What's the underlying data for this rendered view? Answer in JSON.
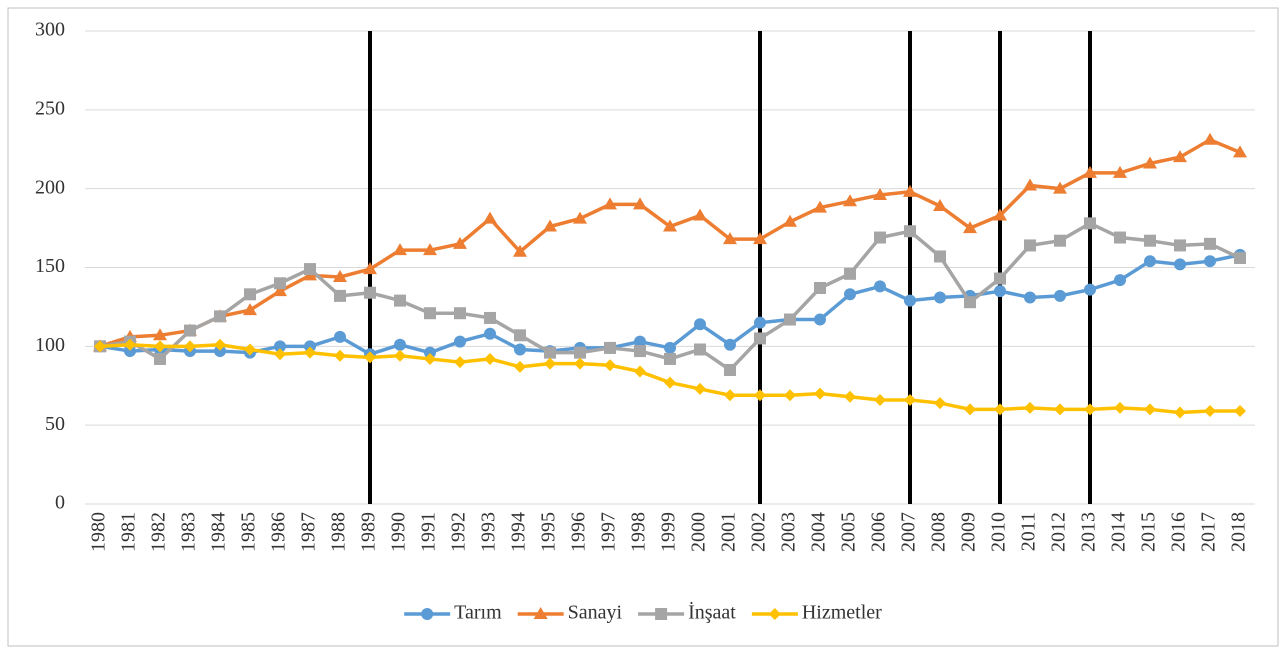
{
  "chart_data": {
    "type": "line",
    "categories": [
      "1980",
      "1981",
      "1982",
      "1983",
      "1984",
      "1985",
      "1986",
      "1987",
      "1988",
      "1989",
      "1990",
      "1991",
      "1992",
      "1993",
      "1994",
      "1995",
      "1996",
      "1997",
      "1998",
      "1999",
      "2000",
      "2001",
      "2002",
      "2003",
      "2004",
      "2005",
      "2006",
      "2007",
      "2008",
      "2009",
      "2010",
      "2011",
      "2012",
      "2013",
      "2014",
      "2015",
      "2016",
      "2017",
      "2018"
    ],
    "series": [
      {
        "name": "Tarım",
        "color": "#5b9bd5",
        "marker": "circle",
        "values": [
          100,
          97,
          98,
          97,
          97,
          96,
          100,
          100,
          106,
          95,
          101,
          96,
          103,
          108,
          98,
          97,
          99,
          99,
          103,
          99,
          114,
          101,
          115,
          117,
          117,
          133,
          138,
          129,
          131,
          132,
          135,
          131,
          132,
          136,
          142,
          154,
          152,
          154,
          158
        ]
      },
      {
        "name": "Sanayi",
        "color": "#ed7d31",
        "marker": "triangle",
        "values": [
          100,
          106,
          107,
          110,
          119,
          123,
          135,
          145,
          144,
          149,
          161,
          161,
          165,
          181,
          160,
          176,
          181,
          190,
          190,
          176,
          183,
          168,
          168,
          179,
          188,
          192,
          196,
          198,
          189,
          175,
          183,
          202,
          200,
          210,
          210,
          216,
          220,
          231,
          223
        ]
      },
      {
        "name": "İnşaat",
        "color": "#a5a5a5",
        "marker": "square",
        "values": [
          100,
          103,
          92,
          110,
          119,
          133,
          140,
          149,
          132,
          134,
          129,
          121,
          121,
          118,
          107,
          96,
          96,
          99,
          97,
          92,
          98,
          85,
          105,
          117,
          137,
          146,
          169,
          173,
          157,
          128,
          143,
          164,
          167,
          178,
          169,
          167,
          164,
          165,
          156
        ]
      },
      {
        "name": "Hizmetler",
        "color": "#ffc000",
        "marker": "diamond",
        "values": [
          100,
          101,
          100,
          100,
          101,
          98,
          95,
          96,
          94,
          93,
          94,
          92,
          90,
          92,
          87,
          89,
          89,
          88,
          84,
          77,
          73,
          69,
          69,
          69,
          70,
          68,
          66,
          66,
          64,
          60,
          60,
          61,
          60,
          60,
          61,
          60,
          58,
          59,
          59
        ]
      }
    ],
    "vlines": [
      "1989",
      "2002",
      "2007",
      "2010",
      "2013"
    ],
    "ylim": [
      0,
      300
    ],
    "yticks": [
      0,
      50,
      100,
      150,
      200,
      250,
      300
    ],
    "grid": true,
    "legend": "bottom"
  }
}
